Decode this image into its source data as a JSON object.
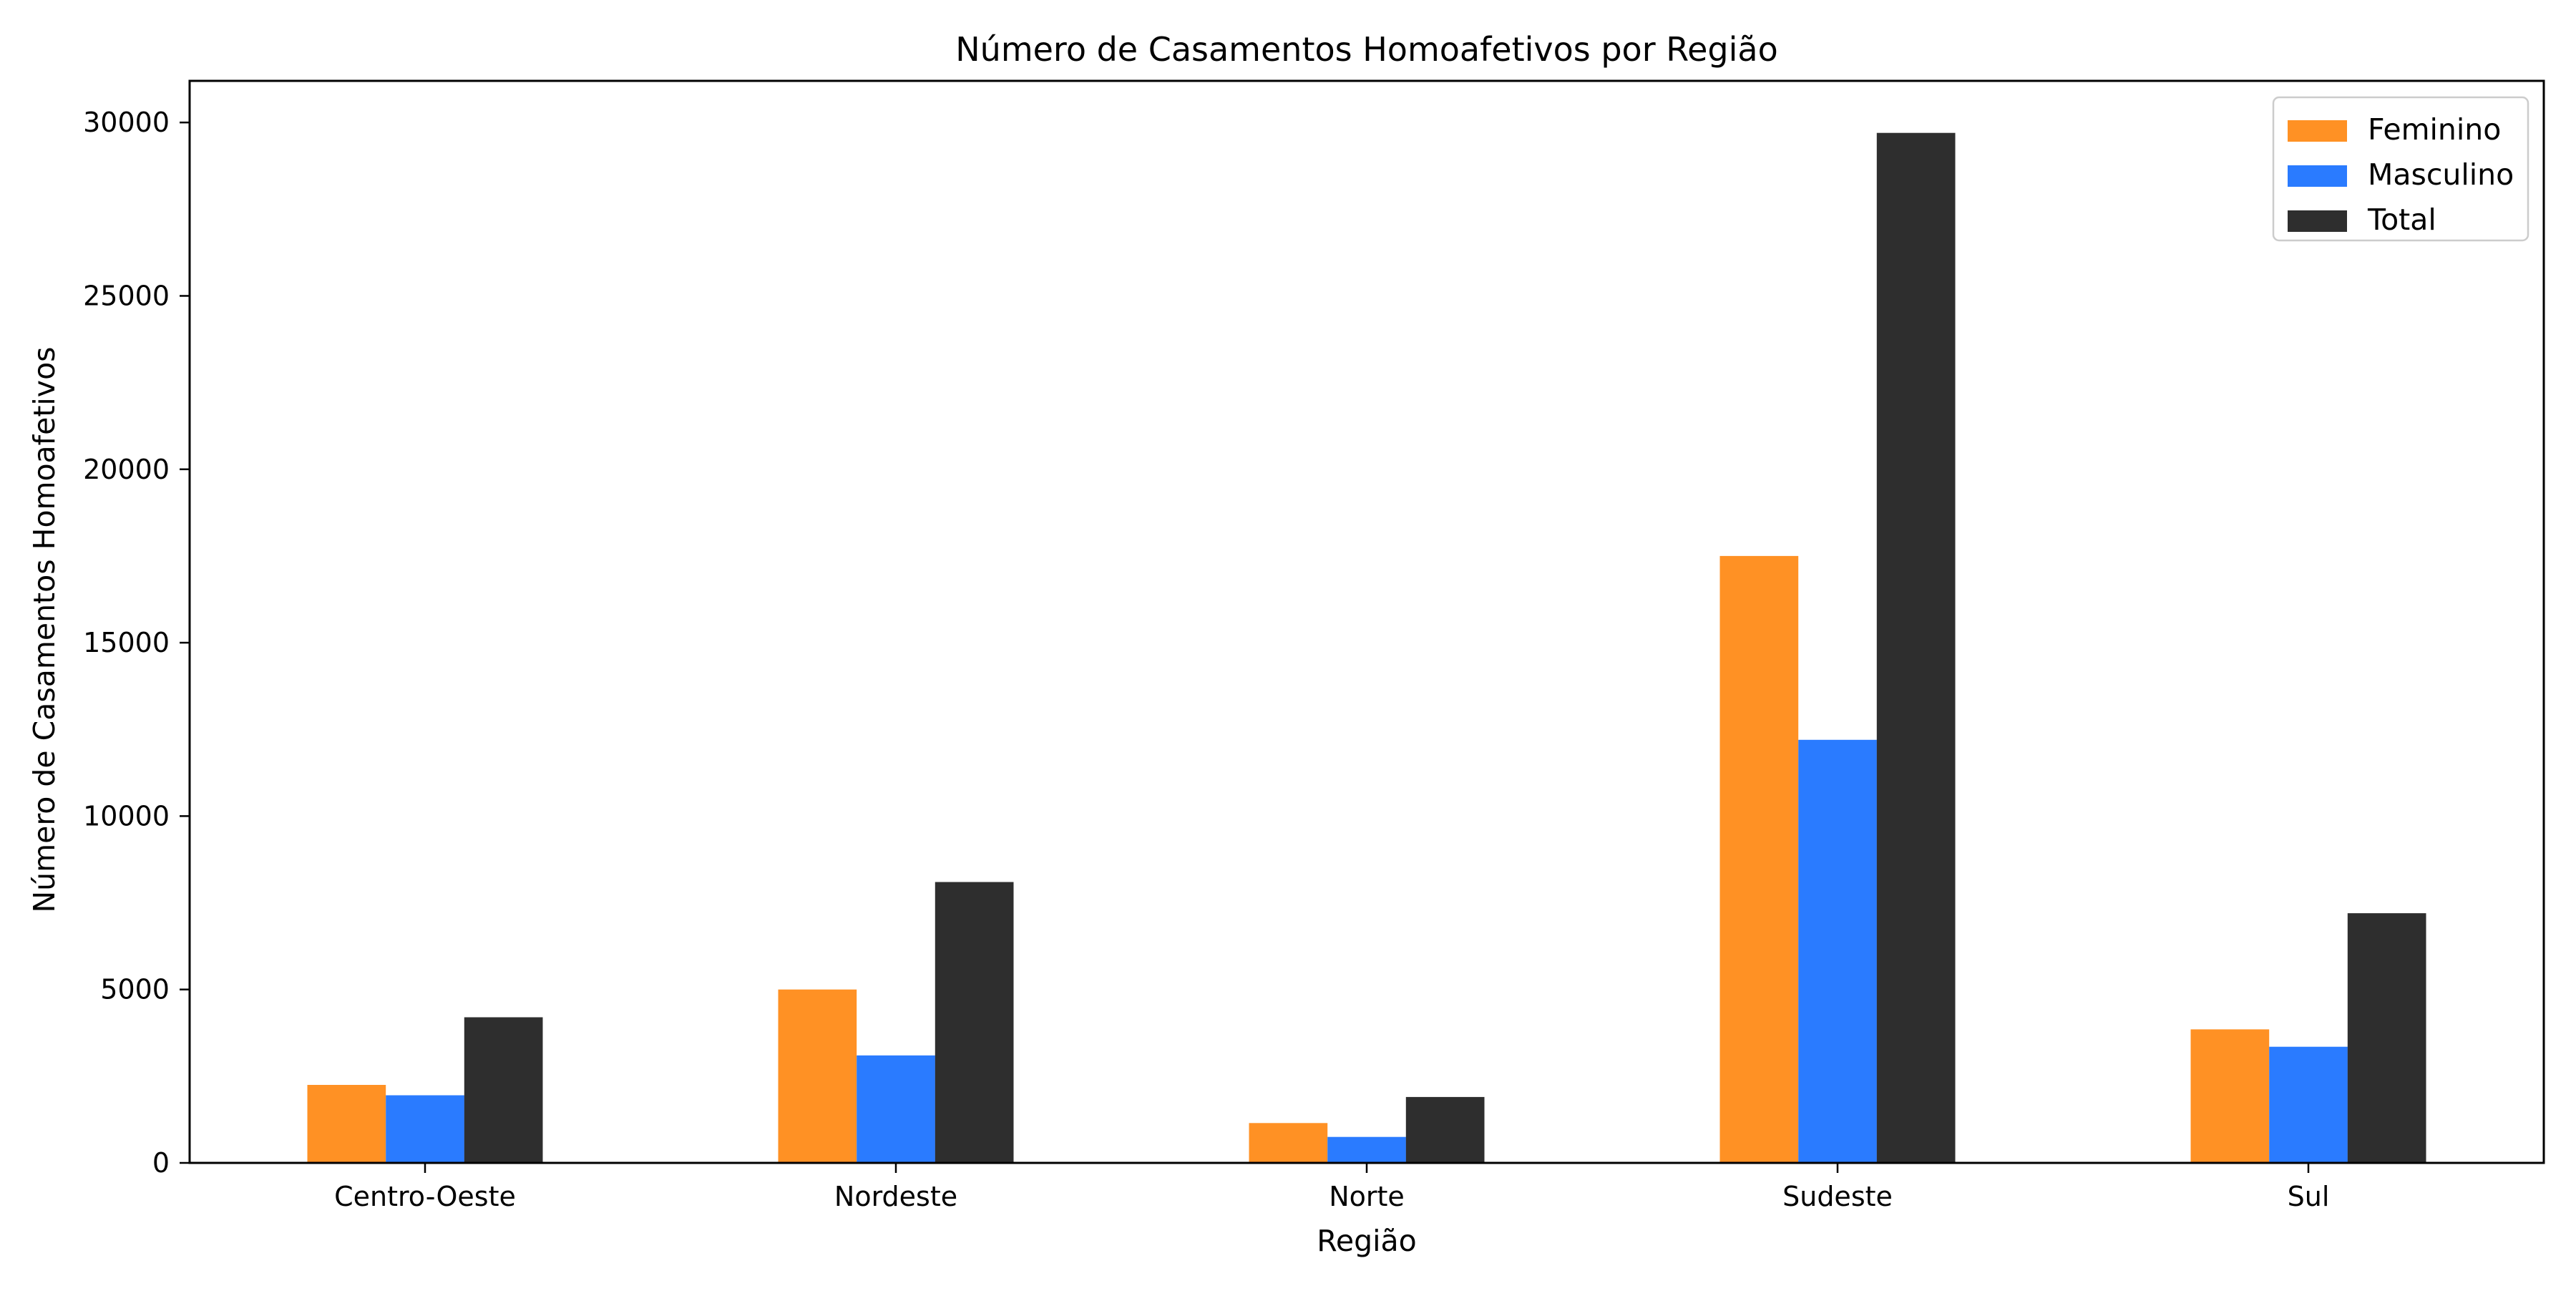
{
  "chart_data": {
    "type": "bar",
    "title": "Número de Casamentos Homoafetivos por Região",
    "xlabel": "Região",
    "ylabel": "Número de Casamentos Homoafetivos",
    "categories": [
      "Centro-Oeste",
      "Nordeste",
      "Norte",
      "Sudeste",
      "Sul"
    ],
    "series": [
      {
        "name": "Feminino",
        "color": "#ff9124",
        "values": [
          2250,
          5000,
          1150,
          17500,
          3850
        ]
      },
      {
        "name": "Masculino",
        "color": "#2a7bff",
        "values": [
          1950,
          3100,
          750,
          12200,
          3350
        ]
      },
      {
        "name": "Total",
        "color": "#2e2e2e",
        "values": [
          4200,
          8100,
          1900,
          29700,
          7200
        ]
      }
    ],
    "ylim": [
      0,
      31200
    ],
    "yticks": [
      0,
      5000,
      10000,
      15000,
      20000,
      25000,
      30000
    ],
    "grid": false,
    "legend_position": "top-right"
  }
}
